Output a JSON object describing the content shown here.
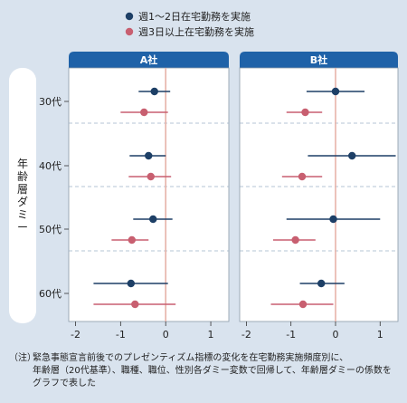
{
  "colors": {
    "background": "#d9e3ee",
    "panel_header": "#1f62a8",
    "series1": "#1d3f66",
    "series2": "#c85f70",
    "zero_line": "#e7b3a9",
    "separator": "#9fb4c8"
  },
  "chart_data": {
    "type": "scatter",
    "subtype": "coefficient-plot-with-error-bars",
    "y_axis_title": "年齢層ダミー",
    "categories": [
      "30代",
      "40代",
      "50代",
      "60代"
    ],
    "x_ticks": [
      -2,
      -1,
      0,
      1
    ],
    "xlim": [
      -2.15,
      1.4
    ],
    "legend_position": "top",
    "reference_line_x": 0,
    "series": [
      {
        "name": "週1～2日在宅勤務を実施",
        "color": "#1d3f66"
      },
      {
        "name": "週3日以上在宅勤務を実施",
        "color": "#c85f70"
      }
    ],
    "panels": [
      {
        "title": "A社",
        "series": [
          {
            "estimates": [
              -0.25,
              -0.38,
              -0.28,
              -0.77
            ],
            "ci_low": [
              -0.6,
              -0.8,
              -0.72,
              -1.6
            ],
            "ci_high": [
              0.1,
              0.0,
              0.15,
              0.05
            ]
          },
          {
            "estimates": [
              -0.48,
              -0.33,
              -0.75,
              -0.68
            ],
            "ci_low": [
              -1.0,
              -0.82,
              -1.2,
              -1.6
            ],
            "ci_high": [
              0.05,
              0.12,
              -0.38,
              0.22
            ]
          }
        ]
      },
      {
        "title": "B社",
        "series": [
          {
            "estimates": [
              0.0,
              0.37,
              -0.05,
              -0.32
            ],
            "ci_low": [
              -0.65,
              -0.62,
              -1.1,
              -0.8
            ],
            "ci_high": [
              0.65,
              1.35,
              1.0,
              0.2
            ]
          },
          {
            "estimates": [
              -0.68,
              -0.75,
              -0.9,
              -0.73
            ],
            "ci_low": [
              -1.1,
              -1.2,
              -1.4,
              -1.45
            ],
            "ci_high": [
              -0.3,
              -0.3,
              -0.45,
              -0.05
            ]
          }
        ]
      }
    ]
  },
  "note": {
    "lead": "（注）",
    "lines": [
      "緊急事態宣言前後でのプレゼンティズム指標の変化を在宅勤務実施頻度別に、",
      "年齢層（20代基準）、職種、職位、性別各ダミー変数で回帰して、年齢層ダミーの係数を",
      "グラフで表した"
    ]
  }
}
